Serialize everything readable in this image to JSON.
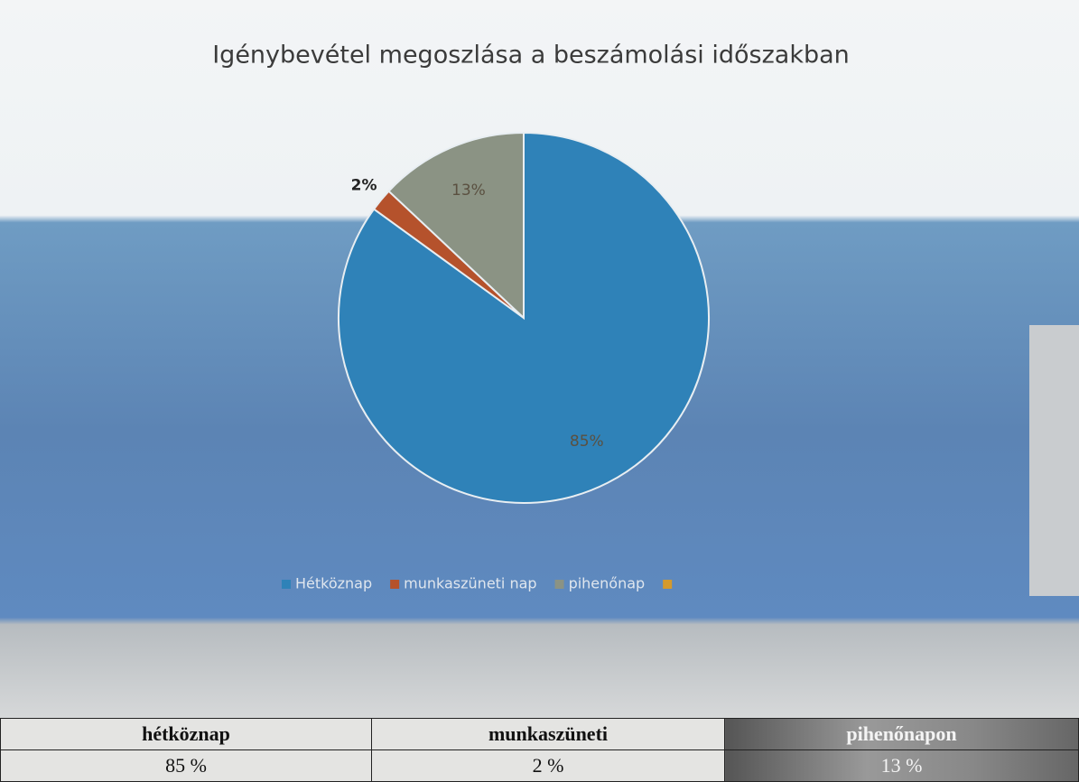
{
  "chart_data": {
    "type": "pie",
    "title": "Igénybevétel megoszlása a beszámolási időszakban",
    "categories": [
      "Hétköznap",
      "munkaszüneti nap",
      "pihenőnap",
      null
    ],
    "values": [
      85,
      2,
      13,
      null
    ],
    "value_labels": [
      "85%",
      "2%",
      "13%",
      null
    ],
    "colors": [
      "#2f82b8",
      "#b5522c",
      "#8b9384",
      "#d49a2c"
    ],
    "legend": "bottom"
  },
  "table": {
    "header": [
      "hétköznap",
      "munkaszüneti",
      "pihenőnapon"
    ],
    "rows": [
      [
        "85 %",
        "2 %",
        "13 %"
      ]
    ]
  }
}
